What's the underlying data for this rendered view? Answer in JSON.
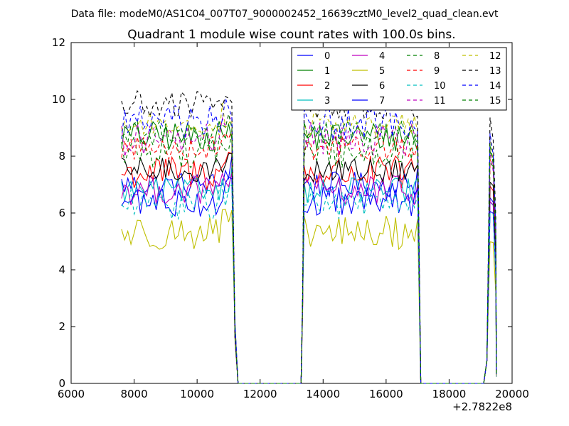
{
  "header": {
    "suptitle": "Data file: modeM0/AS1C04_007T07_9000002452_16639cztM0_level2_quad_clean.evt",
    "title": "Quadrant 1 module wise count rates with 100.0s bins."
  },
  "chart_data": {
    "type": "line",
    "title": "Quadrant 1 module wise count rates with 100.0s bins.",
    "xlabel": "",
    "ylabel": "",
    "x_offset_label": "+2.7822e8",
    "xlim": [
      6000,
      20000
    ],
    "ylim": [
      0,
      12
    ],
    "x_ticks": [
      "6000",
      "8000",
      "10000",
      "12000",
      "14000",
      "16000",
      "18000",
      "20000"
    ],
    "y_ticks": [
      "0",
      "2",
      "4",
      "6",
      "8",
      "10",
      "12"
    ],
    "grid": false,
    "legend_position": "top-right",
    "segments": [
      {
        "start": 7600,
        "end": 11000
      },
      {
        "start": 13400,
        "end": 16900
      },
      {
        "start": 19300,
        "end": 19400
      }
    ],
    "zero_gaps": [
      {
        "start": 11300,
        "end": 13200
      },
      {
        "start": 17100,
        "end": 19100
      }
    ],
    "series": [
      {
        "name": "0",
        "color": "#0000ff",
        "style": "solid",
        "mean": 7.0,
        "first_gap_level": 8.0
      },
      {
        "name": "1",
        "color": "#008000",
        "style": "solid",
        "mean": 8.7,
        "first_gap_level": 8.6
      },
      {
        "name": "2",
        "color": "#ff0000",
        "style": "solid",
        "mean": 7.4,
        "first_gap_level": 8.1
      },
      {
        "name": "3",
        "color": "#00bfbf",
        "style": "solid",
        "mean": 6.8,
        "first_gap_level": 7.6
      },
      {
        "name": "4",
        "color": "#bf00bf",
        "style": "solid",
        "mean": 6.8,
        "first_gap_level": 7.4
      },
      {
        "name": "5",
        "color": "#bfbf00",
        "style": "solid",
        "mean": 5.3,
        "first_gap_level": 6.1
      },
      {
        "name": "6",
        "color": "#000000",
        "style": "solid",
        "mean": 7.5,
        "first_gap_level": 8.1
      },
      {
        "name": "7",
        "color": "#0000ff",
        "style": "solid",
        "mean": 6.4,
        "first_gap_level": 7.2
      },
      {
        "name": "8",
        "color": "#008000",
        "style": "dashed",
        "mean": 8.2,
        "first_gap_level": 8.8
      },
      {
        "name": "9",
        "color": "#ff0000",
        "style": "dashed",
        "mean": 8.3,
        "first_gap_level": 8.9
      },
      {
        "name": "10",
        "color": "#00bfbf",
        "style": "dashed",
        "mean": 6.3,
        "first_gap_level": 7.0
      },
      {
        "name": "11",
        "color": "#bf00bf",
        "style": "dashed",
        "mean": 8.6,
        "first_gap_level": 9.2
      },
      {
        "name": "12",
        "color": "#bfbf00",
        "style": "dashed",
        "mean": 9.1,
        "first_gap_level": 9.3
      },
      {
        "name": "13",
        "color": "#000000",
        "style": "dashed",
        "mean": 9.8,
        "first_gap_level": 9.9
      },
      {
        "name": "14",
        "color": "#0000ff",
        "style": "dashed",
        "mean": 9.2,
        "first_gap_level": 9.4
      },
      {
        "name": "15",
        "color": "#008000",
        "style": "dashed",
        "mean": 8.8,
        "first_gap_level": 9.0
      }
    ]
  }
}
